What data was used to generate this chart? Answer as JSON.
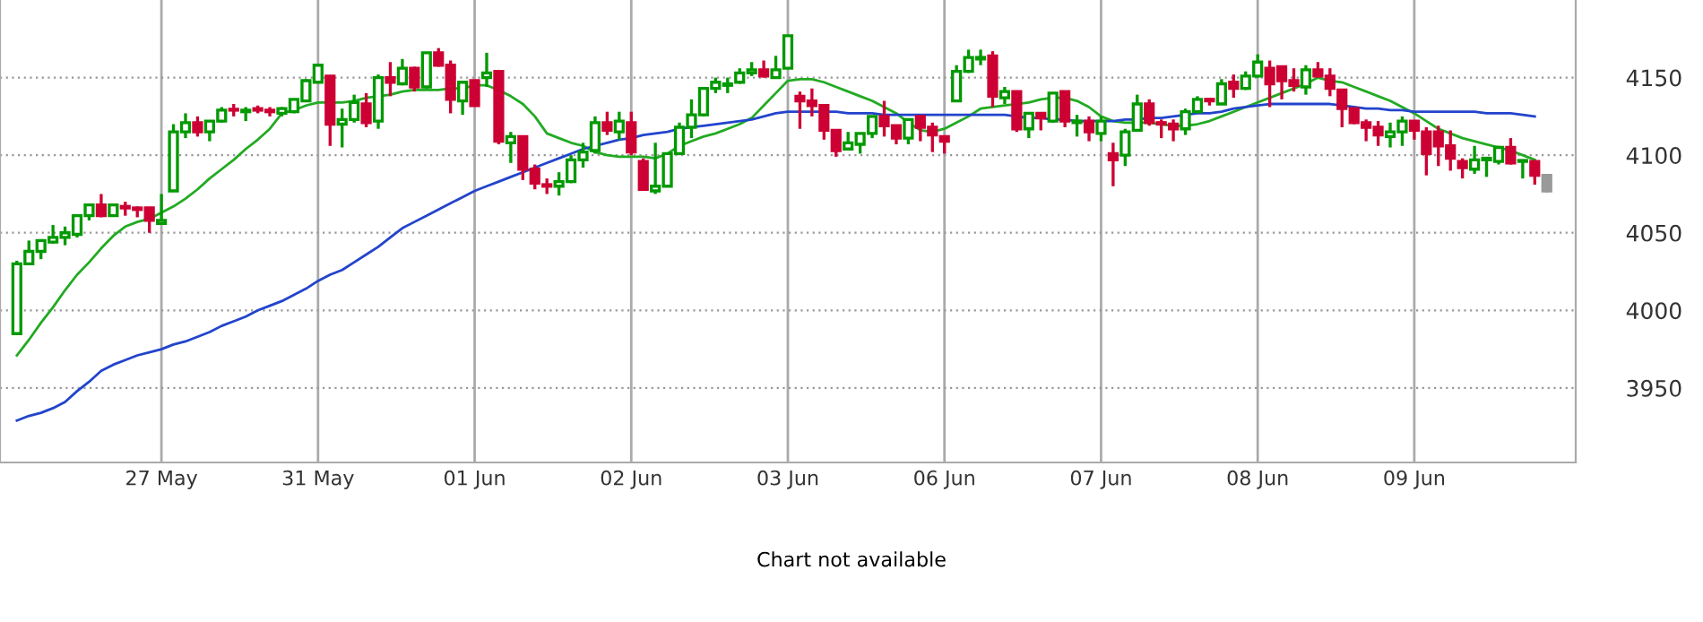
{
  "chart_data": {
    "type": "candlestick",
    "categories": [
      null,
      null,
      null,
      null,
      null,
      null,
      null,
      null,
      null,
      null,
      null,
      null,
      "27 May",
      null,
      null,
      null,
      null,
      null,
      null,
      null,
      null,
      null,
      null,
      null,
      null,
      "31 May",
      null,
      null,
      null,
      null,
      null,
      null,
      null,
      null,
      null,
      null,
      null,
      null,
      "01 Jun",
      null,
      null,
      null,
      null,
      null,
      null,
      null,
      null,
      null,
      null,
      null,
      null,
      "02 Jun",
      null,
      null,
      null,
      null,
      null,
      null,
      null,
      null,
      null,
      null,
      null,
      null,
      "03 Jun",
      null,
      null,
      null,
      null,
      null,
      null,
      null,
      null,
      null,
      null,
      null,
      null,
      "06 Jun",
      null,
      null,
      null,
      null,
      null,
      null,
      null,
      null,
      null,
      null,
      null,
      null,
      "07 Jun",
      null,
      null,
      null,
      null,
      null,
      null,
      null,
      null,
      null,
      null,
      null,
      null,
      "08 Jun",
      null,
      null,
      null,
      null,
      null,
      null,
      null,
      null,
      null,
      null,
      null,
      null,
      "09 Jun",
      null,
      null,
      null,
      null,
      null,
      null,
      null,
      null,
      null,
      null,
      null
    ],
    "ohlc": [
      [
        3985,
        4032,
        3985,
        4030
      ],
      [
        4030,
        4045,
        4030,
        4038
      ],
      [
        4038,
        4045,
        4033,
        4045
      ],
      [
        4044,
        4055,
        4043,
        4047
      ],
      [
        4047,
        4054,
        4042,
        4050
      ],
      [
        4049,
        4062,
        4047,
        4061
      ],
      [
        4061,
        4068,
        4058,
        4068
      ],
      [
        4068,
        4075,
        4060,
        4061
      ],
      [
        4061,
        4068,
        4061,
        4068
      ],
      [
        4067,
        4070,
        4061,
        4066
      ],
      [
        4066,
        4067,
        4060,
        4065
      ],
      [
        4066,
        4066,
        4050,
        4058
      ],
      [
        4056,
        4075,
        4056,
        4058
      ],
      [
        4077,
        4120,
        4077,
        4115
      ],
      [
        4115,
        4127,
        4111,
        4121
      ],
      [
        4121,
        4125,
        4112,
        4115
      ],
      [
        4115,
        4122,
        4109,
        4122
      ],
      [
        4122,
        4131,
        4121,
        4129
      ],
      [
        4129,
        4133,
        4125,
        4129
      ],
      [
        4128,
        4131,
        4122,
        4129
      ],
      [
        4130,
        4132,
        4127,
        4129
      ],
      [
        4129,
        4131,
        4125,
        4128
      ],
      [
        4127,
        4131,
        4125,
        4130
      ],
      [
        4128,
        4136,
        4127,
        4136
      ],
      [
        4135,
        4149,
        4135,
        4148
      ],
      [
        4147,
        4158,
        4147,
        4158
      ],
      [
        4151,
        4151,
        4106,
        4120
      ],
      [
        4120,
        4130,
        4105,
        4123
      ],
      [
        4123,
        4139,
        4121,
        4134
      ],
      [
        4133,
        4140,
        4118,
        4121
      ],
      [
        4122,
        4152,
        4117,
        4150
      ],
      [
        4150,
        4160,
        4138,
        4147
      ],
      [
        4146,
        4162,
        4145,
        4156
      ],
      [
        4156,
        4157,
        4141,
        4144
      ],
      [
        4144,
        4166,
        4143,
        4166
      ],
      [
        4166,
        4169,
        4157,
        4158
      ],
      [
        4158,
        4161,
        4127,
        4136
      ],
      [
        4135,
        4147,
        4126,
        4147
      ],
      [
        4148,
        4148,
        4132,
        4132
      ],
      [
        4150,
        4166,
        4144,
        4153
      ],
      [
        4154,
        4155,
        4107,
        4109
      ],
      [
        4108,
        4115,
        4095,
        4112
      ],
      [
        4112,
        4112,
        4084,
        4091
      ],
      [
        4091,
        4094,
        4078,
        4082
      ],
      [
        4081,
        4085,
        4075,
        4080
      ],
      [
        4080,
        4089,
        4074,
        4083
      ],
      [
        4083,
        4100,
        4082,
        4097
      ],
      [
        4097,
        4108,
        4092,
        4102
      ],
      [
        4103,
        4125,
        4101,
        4121
      ],
      [
        4121,
        4128,
        4113,
        4116
      ],
      [
        4115,
        4128,
        4110,
        4122
      ],
      [
        4121,
        4128,
        4100,
        4102
      ],
      [
        4096,
        4098,
        4077,
        4078
      ],
      [
        4077,
        4108,
        4075,
        4080
      ],
      [
        4080,
        4101,
        4080,
        4101
      ],
      [
        4101,
        4121,
        4100,
        4118
      ],
      [
        4118,
        4136,
        4111,
        4126
      ],
      [
        4126,
        4143,
        4125,
        4143
      ],
      [
        4143,
        4150,
        4140,
        4147
      ],
      [
        4145,
        4150,
        4140,
        4146
      ],
      [
        4147,
        4156,
        4146,
        4153
      ],
      [
        4153,
        4160,
        4151,
        4155
      ],
      [
        4155,
        4161,
        4150,
        4151
      ],
      [
        4150,
        4164,
        4150,
        4155
      ],
      [
        4156,
        4177,
        4156,
        4177
      ],
      [
        4138,
        4141,
        4117,
        4135
      ],
      [
        4135,
        4143,
        4125,
        4132
      ],
      [
        4132,
        4132,
        4110,
        4116
      ],
      [
        4116,
        4116,
        4099,
        4103
      ],
      [
        4104,
        4115,
        4103,
        4108
      ],
      [
        4107,
        4114,
        4101,
        4114
      ],
      [
        4114,
        4125,
        4111,
        4125
      ],
      [
        4125,
        4135,
        4112,
        4119
      ],
      [
        4119,
        4119,
        4107,
        4111
      ],
      [
        4111,
        4123,
        4107,
        4123
      ],
      [
        4125,
        4125,
        4109,
        4118
      ],
      [
        4118,
        4121,
        4102,
        4113
      ],
      [
        4112,
        4112,
        4101,
        4109
      ],
      [
        4135,
        4158,
        4135,
        4154
      ],
      [
        4154,
        4168,
        4153,
        4163
      ],
      [
        4162,
        4168,
        4158,
        4163
      ],
      [
        4164,
        4167,
        4131,
        4138
      ],
      [
        4137,
        4144,
        4133,
        4141
      ],
      [
        4141,
        4141,
        4115,
        4117
      ],
      [
        4117,
        4127,
        4111,
        4127
      ],
      [
        4127,
        4127,
        4116,
        4124
      ],
      [
        4122,
        4140,
        4121,
        4140
      ],
      [
        4141,
        4141,
        4118,
        4122
      ],
      [
        4121,
        4126,
        4112,
        4122
      ],
      [
        4122,
        4125,
        4109,
        4115
      ],
      [
        4114,
        4125,
        4109,
        4122
      ],
      [
        4101,
        4108,
        4080,
        4097
      ],
      [
        4100,
        4117,
        4093,
        4115
      ],
      [
        4116,
        4139,
        4116,
        4133
      ],
      [
        4133,
        4136,
        4119,
        4121
      ],
      [
        4121,
        4123,
        4111,
        4120
      ],
      [
        4120,
        4123,
        4109,
        4117
      ],
      [
        4117,
        4130,
        4113,
        4128
      ],
      [
        4128,
        4138,
        4127,
        4136
      ],
      [
        4136,
        4137,
        4132,
        4135
      ],
      [
        4133,
        4149,
        4133,
        4146
      ],
      [
        4147,
        4152,
        4137,
        4143
      ],
      [
        4143,
        4154,
        4142,
        4151
      ],
      [
        4151,
        4165,
        4150,
        4160
      ],
      [
        4156,
        4161,
        4131,
        4146
      ],
      [
        4157,
        4157,
        4136,
        4148
      ],
      [
        4148,
        4156,
        4141,
        4145
      ],
      [
        4144,
        4158,
        4139,
        4155
      ],
      [
        4155,
        4160,
        4150,
        4151
      ],
      [
        4151,
        4156,
        4138,
        4143
      ],
      [
        4142,
        4142,
        4118,
        4130
      ],
      [
        4130,
        4130,
        4120,
        4121
      ],
      [
        4121,
        4123,
        4109,
        4118
      ],
      [
        4118,
        4122,
        4106,
        4113
      ],
      [
        4112,
        4121,
        4105,
        4115
      ],
      [
        4115,
        4125,
        4106,
        4122
      ],
      [
        4122,
        4122,
        4110,
        4116
      ],
      [
        4115,
        4118,
        4087,
        4101
      ],
      [
        4115,
        4119,
        4093,
        4106
      ],
      [
        4106,
        4116,
        4090,
        4098
      ],
      [
        4096,
        4098,
        4085,
        4092
      ],
      [
        4091,
        4106,
        4088,
        4097
      ],
      [
        4097,
        4099,
        4086,
        4098
      ],
      [
        4096,
        4106,
        4094,
        4105
      ],
      [
        4105,
        4111,
        4094,
        4095
      ],
      [
        4096,
        4096,
        4085,
        4096
      ],
      [
        4096,
        4096,
        4081,
        4087
      ],
      [
        4087,
        4087,
        4076,
        4077
      ]
    ],
    "colors": [
      "#009900",
      "#009900",
      "#009900",
      "#009900",
      "#009900",
      "#009900",
      "#009900",
      "#cc0033",
      "#009900",
      "#cc0033",
      "#cc0033",
      "#cc0033",
      "#009900",
      "#009900",
      "#009900",
      "#cc0033",
      "#009900",
      "#009900",
      "#cc0033",
      "#009900",
      "#cc0033",
      "#cc0033",
      "#009900",
      "#009900",
      "#009900",
      "#009900",
      "#cc0033",
      "#009900",
      "#009900",
      "#cc0033",
      "#009900",
      "#cc0033",
      "#009900",
      "#cc0033",
      "#009900",
      "#cc0033",
      "#cc0033",
      "#009900",
      "#cc0033",
      "#009900",
      "#cc0033",
      "#009900",
      "#cc0033",
      "#cc0033",
      "#cc0033",
      "#009900",
      "#009900",
      "#009900",
      "#009900",
      "#cc0033",
      "#009900",
      "#cc0033",
      "#cc0033",
      "#009900",
      "#009900",
      "#009900",
      "#009900",
      "#009900",
      "#009900",
      "#009900",
      "#009900",
      "#009900",
      "#cc0033",
      "#009900",
      "#009900",
      "#cc0033",
      "#cc0033",
      "#cc0033",
      "#cc0033",
      "#009900",
      "#009900",
      "#009900",
      "#cc0033",
      "#cc0033",
      "#009900",
      "#cc0033",
      "#cc0033",
      "#cc0033",
      "#009900",
      "#009900",
      "#009900",
      "#cc0033",
      "#009900",
      "#cc0033",
      "#009900",
      "#cc0033",
      "#009900",
      "#cc0033",
      "#009900",
      "#cc0033",
      "#009900",
      "#cc0033",
      "#009900",
      "#009900",
      "#cc0033",
      "#cc0033",
      "#cc0033",
      "#009900",
      "#009900",
      "#cc0033",
      "#009900",
      "#cc0033",
      "#009900",
      "#009900",
      "#cc0033",
      "#cc0033",
      "#cc0033",
      "#009900",
      "#cc0033",
      "#cc0033",
      "#cc0033",
      "#cc0033",
      "#cc0033",
      "#cc0033",
      "#009900",
      "#009900",
      "#cc0033",
      "#cc0033",
      "#cc0033",
      "#cc0033",
      "#cc0033",
      "#009900",
      "#009900",
      "#009900",
      "#cc0033",
      "#009900",
      "#cc0033",
      "#999999"
    ],
    "series": [
      {
        "type": "line",
        "color": "#22aa22",
        "values": [
          3971,
          3981,
          3992,
          4002,
          4013,
          4023,
          4031,
          4040,
          4048,
          4054,
          4057,
          4059,
          4063,
          4067,
          4072,
          4078,
          4085,
          4091,
          4097,
          4104,
          4110,
          4117,
          4127,
          4129,
          4132,
          4134,
          4134,
          4134,
          4135,
          4137,
          4138,
          4139,
          4141,
          4142,
          4142,
          4142,
          4143,
          4143,
          4145,
          4145,
          4142,
          4138,
          4133,
          4125,
          4114,
          4111,
          4108,
          4106,
          4102,
          4100,
          4099,
          4099,
          4099,
          4098,
          4101,
          4106,
          4109,
          4112,
          4114,
          4117,
          4120,
          4124,
          4132,
          4140,
          4148,
          4149,
          4149,
          4147,
          4144,
          4141,
          4138,
          4135,
          4131,
          4127,
          4121,
          4116,
          4115,
          4117,
          4121,
          4125,
          4130,
          4131,
          4132,
          4133,
          4134,
          4136,
          4137,
          4137,
          4135,
          4131,
          4125,
          4122,
          4121,
          4121,
          4121,
          4120,
          4119,
          4119,
          4120,
          4122,
          4125,
          4128,
          4131,
          4134,
          4137,
          4140,
          4143,
          4146,
          4150,
          4148,
          4147,
          4144,
          4141,
          4138,
          4135,
          4131,
          4127,
          4122,
          4117,
          4114,
          4111,
          4109,
          4107,
          4105,
          4103,
          4100,
          4097,
          null
        ]
      },
      {
        "type": "line",
        "color": "#2244cc",
        "values": [
          3929,
          3932,
          3934,
          3937,
          3941,
          3948,
          3954,
          3961,
          3965,
          3968,
          3971,
          3973,
          3975,
          3978,
          3980,
          3983,
          3986,
          3990,
          3993,
          3996,
          4000,
          4003,
          4006,
          4010,
          4014,
          4019,
          4023,
          4026,
          4031,
          4036,
          4041,
          4047,
          4053,
          4057,
          4061,
          4065,
          4069,
          4073,
          4077,
          4080,
          4083,
          4086,
          4089,
          4092,
          4095,
          4098,
          4101,
          4104,
          4106,
          4108,
          4110,
          4111,
          4113,
          4114,
          4115,
          4117,
          4118,
          4119,
          4120,
          4121,
          4122,
          4123,
          4125,
          4127,
          4128,
          4128,
          4128,
          4128,
          4128,
          4127,
          4127,
          4127,
          4126,
          4126,
          4126,
          4126,
          4126,
          4126,
          4126,
          4126,
          4126,
          4126,
          4126,
          4125,
          4124,
          4124,
          4123,
          4123,
          4122,
          4122,
          4122,
          4122,
          4123,
          4123,
          4124,
          4124,
          4125,
          4126,
          4127,
          4127,
          4128,
          4130,
          4131,
          4132,
          4133,
          4133,
          4133,
          4133,
          4133,
          4133,
          4132,
          4131,
          4130,
          4130,
          4129,
          4129,
          4128,
          4128,
          4128,
          4128,
          4128,
          4128,
          4127,
          4127,
          4127,
          4126,
          4125,
          null
        ]
      }
    ],
    "ylim": [
      3902,
      4200
    ],
    "yticks": [
      3950,
      4000,
      4050,
      4100,
      4150
    ],
    "grid": true,
    "annotations": [
      "Chart not available"
    ]
  }
}
